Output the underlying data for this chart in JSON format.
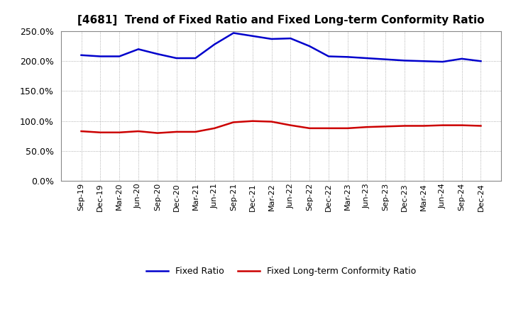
{
  "title": "[4681]  Trend of Fixed Ratio and Fixed Long-term Conformity Ratio",
  "x_labels": [
    "Sep-19",
    "Dec-19",
    "Mar-20",
    "Jun-20",
    "Sep-20",
    "Dec-20",
    "Mar-21",
    "Jun-21",
    "Sep-21",
    "Dec-21",
    "Mar-22",
    "Jun-22",
    "Sep-22",
    "Dec-22",
    "Mar-23",
    "Jun-23",
    "Sep-23",
    "Dec-23",
    "Mar-24",
    "Jun-24",
    "Sep-24",
    "Dec-24"
  ],
  "fixed_ratio": [
    210,
    208,
    208,
    220,
    212,
    205,
    205,
    228,
    247,
    242,
    237,
    238,
    225,
    208,
    207,
    205,
    203,
    201,
    200,
    199,
    204,
    200
  ],
  "fixed_lt_ratio": [
    83,
    81,
    81,
    83,
    80,
    82,
    82,
    88,
    98,
    100,
    99,
    93,
    88,
    88,
    88,
    90,
    91,
    92,
    92,
    93,
    93,
    92
  ],
  "ylim": [
    0,
    250
  ],
  "yticks": [
    0,
    50,
    100,
    150,
    200,
    250
  ],
  "fixed_ratio_color": "#0000CC",
  "fixed_lt_ratio_color": "#CC0000",
  "background_color": "#FFFFFF",
  "plot_bg_color": "#FFFFFF",
  "grid_color": "#999999",
  "legend_fixed": "Fixed Ratio",
  "legend_lt": "Fixed Long-term Conformity Ratio",
  "line_width": 1.8,
  "title_fontsize": 11,
  "tick_fontsize": 8,
  "ytick_fontsize": 9
}
